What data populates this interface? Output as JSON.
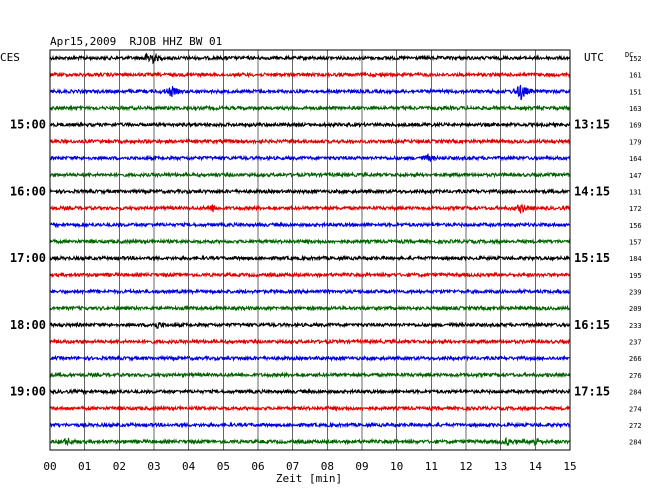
{
  "chart_data": {
    "type": "line",
    "title": "Apr15,2009  RJOB HHZ BW 01",
    "xlabel": "Zeit [min]",
    "left_zone_label": "CES",
    "right_zone_label": "UTC",
    "dc_label": "DC",
    "x_ticks": [
      "00",
      "01",
      "02",
      "03",
      "04",
      "05",
      "06",
      "07",
      "08",
      "09",
      "10",
      "11",
      "12",
      "13",
      "14",
      "15"
    ],
    "xlim": [
      0,
      15
    ],
    "left_time_labels": [
      {
        "row": 4,
        "text": "15:00"
      },
      {
        "row": 8,
        "text": "16:00"
      },
      {
        "row": 12,
        "text": "17:00"
      },
      {
        "row": 16,
        "text": "18:00"
      },
      {
        "row": 20,
        "text": "19:00"
      }
    ],
    "right_time_labels": [
      {
        "row": 4,
        "text": "13:15"
      },
      {
        "row": 8,
        "text": "14:15"
      },
      {
        "row": 12,
        "text": "15:15"
      },
      {
        "row": 16,
        "text": "16:15"
      },
      {
        "row": 20,
        "text": "17:15"
      }
    ],
    "dc_values": [
      "152",
      "161",
      "151",
      "163",
      "169",
      "179",
      "164",
      "147",
      "131",
      "172",
      "156",
      "157",
      "184",
      "195",
      "239",
      "209",
      "233",
      "237",
      "266",
      "276",
      "284",
      "274",
      "272",
      "284"
    ],
    "row_colors": [
      "#000000",
      "#e00000",
      "#0000e0",
      "#006400"
    ],
    "events": [
      {
        "row": 0,
        "minute": 2.9,
        "amplitude": 8
      },
      {
        "row": 2,
        "minute": 3.5,
        "amplitude": 5
      },
      {
        "row": 2,
        "minute": 13.6,
        "amplitude": 9
      },
      {
        "row": 6,
        "minute": 10.9,
        "amplitude": 3
      },
      {
        "row": 9,
        "minute": 4.7,
        "amplitude": 3
      },
      {
        "row": 9,
        "minute": 13.6,
        "amplitude": 4
      },
      {
        "row": 16,
        "minute": 3.1,
        "amplitude": 3
      },
      {
        "row": 23,
        "minute": 0.5,
        "amplitude": 3
      },
      {
        "row": 23,
        "minute": 13.2,
        "amplitude": 3
      },
      {
        "row": 23,
        "minute": 14.0,
        "amplitude": 4
      }
    ]
  }
}
